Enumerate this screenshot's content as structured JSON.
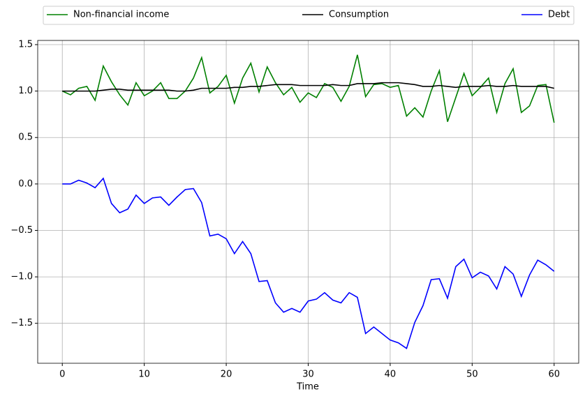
{
  "chart_data": {
    "type": "line",
    "xlabel": "Time",
    "x": [
      0,
      1,
      2,
      3,
      4,
      5,
      6,
      7,
      8,
      9,
      10,
      11,
      12,
      13,
      14,
      15,
      16,
      17,
      18,
      19,
      20,
      21,
      22,
      23,
      24,
      25,
      26,
      27,
      28,
      29,
      30,
      31,
      32,
      33,
      34,
      35,
      36,
      37,
      38,
      39,
      40,
      41,
      42,
      43,
      44,
      45,
      46,
      47,
      48,
      49,
      50,
      51,
      52,
      53,
      54,
      55,
      56,
      57,
      58,
      59,
      60
    ],
    "series": [
      {
        "name": "Non-financial income",
        "color": "#008000",
        "values": [
          1.0,
          0.96,
          1.03,
          1.05,
          0.9,
          1.27,
          1.1,
          0.96,
          0.85,
          1.09,
          0.95,
          1.0,
          1.09,
          0.92,
          0.92,
          1.0,
          1.14,
          1.36,
          0.98,
          1.05,
          1.17,
          0.87,
          1.14,
          1.3,
          0.99,
          1.26,
          1.09,
          0.96,
          1.04,
          0.88,
          0.98,
          0.93,
          1.08,
          1.04,
          0.89,
          1.05,
          1.39,
          0.94,
          1.07,
          1.08,
          1.04,
          1.06,
          0.73,
          0.82,
          0.72,
          1.0,
          1.22,
          0.67,
          0.93,
          1.19,
          0.95,
          1.04,
          1.14,
          0.77,
          1.08,
          1.24,
          0.77,
          0.84,
          1.06,
          1.07,
          0.66
        ]
      },
      {
        "name": "Consumption",
        "color": "#000000",
        "values": [
          1.0,
          1.0,
          1.0,
          1.0,
          1.0,
          1.01,
          1.02,
          1.02,
          1.01,
          1.01,
          1.01,
          1.01,
          1.01,
          1.01,
          1.0,
          1.0,
          1.01,
          1.03,
          1.03,
          1.03,
          1.03,
          1.04,
          1.04,
          1.05,
          1.05,
          1.06,
          1.07,
          1.07,
          1.07,
          1.06,
          1.06,
          1.06,
          1.06,
          1.07,
          1.06,
          1.06,
          1.08,
          1.08,
          1.08,
          1.09,
          1.09,
          1.09,
          1.08,
          1.07,
          1.05,
          1.05,
          1.06,
          1.05,
          1.04,
          1.05,
          1.05,
          1.05,
          1.06,
          1.05,
          1.05,
          1.06,
          1.05,
          1.05,
          1.05,
          1.05,
          1.03
        ]
      },
      {
        "name": "Debt",
        "color": "#0000ff",
        "values": [
          0.0,
          0.0,
          0.04,
          0.01,
          -0.04,
          0.06,
          -0.21,
          -0.31,
          -0.27,
          -0.12,
          -0.21,
          -0.15,
          -0.14,
          -0.23,
          -0.14,
          -0.06,
          -0.05,
          -0.2,
          -0.56,
          -0.54,
          -0.59,
          -0.75,
          -0.62,
          -0.75,
          -1.05,
          -1.04,
          -1.28,
          -1.38,
          -1.34,
          -1.38,
          -1.26,
          -1.24,
          -1.17,
          -1.25,
          -1.28,
          -1.17,
          -1.22,
          -1.61,
          -1.54,
          -1.61,
          -1.68,
          -1.71,
          -1.77,
          -1.49,
          -1.31,
          -1.03,
          -1.02,
          -1.23,
          -0.89,
          -0.81,
          -1.01,
          -0.95,
          -0.99,
          -1.13,
          -0.89,
          -0.97,
          -1.21,
          -0.98,
          -0.82,
          -0.87,
          -0.94
        ]
      }
    ],
    "xlim": [
      -3,
      63
    ],
    "ylim": [
      -1.93,
      1.545
    ],
    "xticks": [
      0,
      10,
      20,
      30,
      40,
      50,
      60
    ],
    "yticks": [
      {
        "value": -1.5,
        "label": "−1.5"
      },
      {
        "value": -1.0,
        "label": "−1.0"
      },
      {
        "value": -0.5,
        "label": "−0.5"
      },
      {
        "value": 0.0,
        "label": "0.0"
      },
      0.5,
      {
        "value": 1.0,
        "label": "1.0"
      },
      1.5
    ],
    "grid": true,
    "legend": "top"
  }
}
